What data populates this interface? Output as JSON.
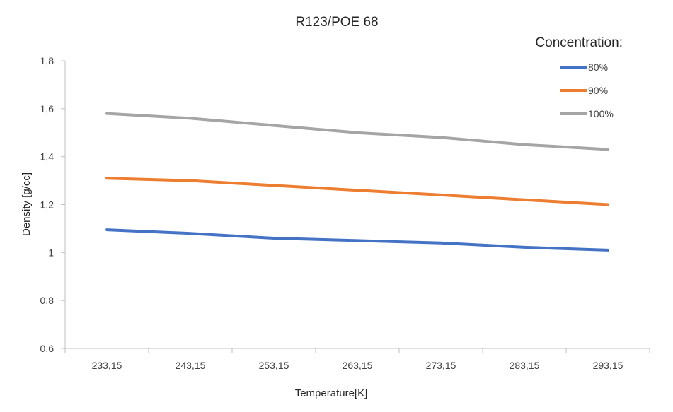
{
  "chart_data": {
    "type": "line",
    "title": "R123/POE 68",
    "xlabel": "Temperature[K]",
    "ylabel": "Density [g/cc]",
    "categories": [
      "233,15",
      "243,15",
      "253,15",
      "263,15",
      "273,15",
      "283,15",
      "293,15"
    ],
    "ylim": [
      0.6,
      1.8
    ],
    "yticks": [
      0.6,
      0.8,
      1.0,
      1.2,
      1.4,
      1.6,
      1.8
    ],
    "ytick_labels": [
      "0,6",
      "0,8",
      "1",
      "1,2",
      "1,4",
      "1,6",
      "1,8"
    ],
    "grid": false,
    "legend": {
      "title": "Concentration:",
      "placement": "top-right"
    },
    "series": [
      {
        "name": "80%",
        "color": "#4472c4",
        "values": [
          1.095,
          1.08,
          1.06,
          1.05,
          1.04,
          1.022,
          1.01
        ]
      },
      {
        "name": "90%",
        "color": "#ed7d31",
        "values": [
          1.31,
          1.3,
          1.28,
          1.26,
          1.24,
          1.22,
          1.2
        ]
      },
      {
        "name": "100%",
        "color": "#a5a5a5",
        "values": [
          1.58,
          1.56,
          1.53,
          1.5,
          1.48,
          1.45,
          1.43
        ]
      }
    ]
  }
}
